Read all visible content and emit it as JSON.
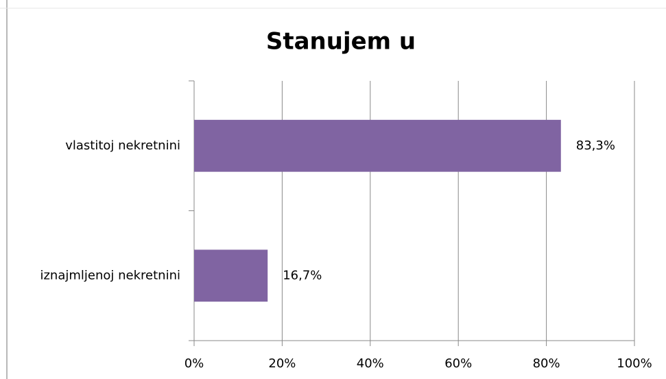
{
  "chart_data": {
    "type": "bar",
    "orientation": "horizontal",
    "title": "Stanujem u",
    "categories": [
      "vlastitoj nekretnini",
      "iznajmljenoj nekretnini"
    ],
    "values": [
      83.3,
      16.7
    ],
    "value_labels": [
      "83,3%",
      "16,7%"
    ],
    "color": "#8064a2",
    "xlim": [
      0,
      100
    ],
    "xticks": [
      {
        "value": 0,
        "label": "0%"
      },
      {
        "value": 20,
        "label": "20%"
      },
      {
        "value": 40,
        "label": "40%"
      },
      {
        "value": 60,
        "label": "60%"
      },
      {
        "value": 80,
        "label": "80%"
      },
      {
        "value": 100,
        "label": "100%"
      }
    ],
    "grid": true
  }
}
